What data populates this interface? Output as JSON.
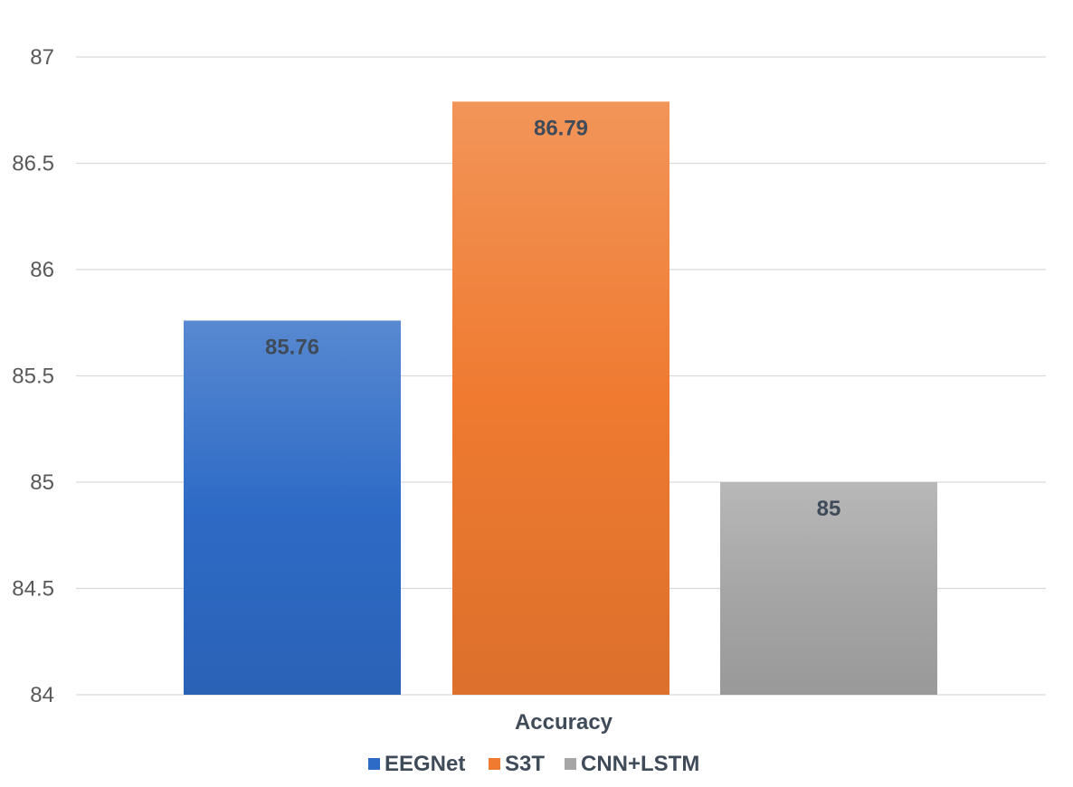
{
  "chart_data": {
    "type": "bar",
    "title": "",
    "xlabel": "",
    "ylabel": "",
    "categories": [
      "Accuracy"
    ],
    "series": [
      {
        "name": "EEGNet",
        "values": [
          85.76
        ],
        "color": "#2e6bc6"
      },
      {
        "name": "S3T",
        "values": [
          86.79
        ],
        "color": "#ef7a30"
      },
      {
        "name": "CNN+LSTM",
        "values": [
          85
        ],
        "color": "#a6a6a6"
      }
    ],
    "data_labels": [
      "85.76",
      "86.79",
      "85"
    ],
    "ylim": [
      84,
      87
    ],
    "yticks": [
      "84",
      "84.5",
      "85",
      "85.5",
      "86",
      "86.5",
      "87"
    ],
    "grid": true,
    "legend_position": "bottom"
  }
}
